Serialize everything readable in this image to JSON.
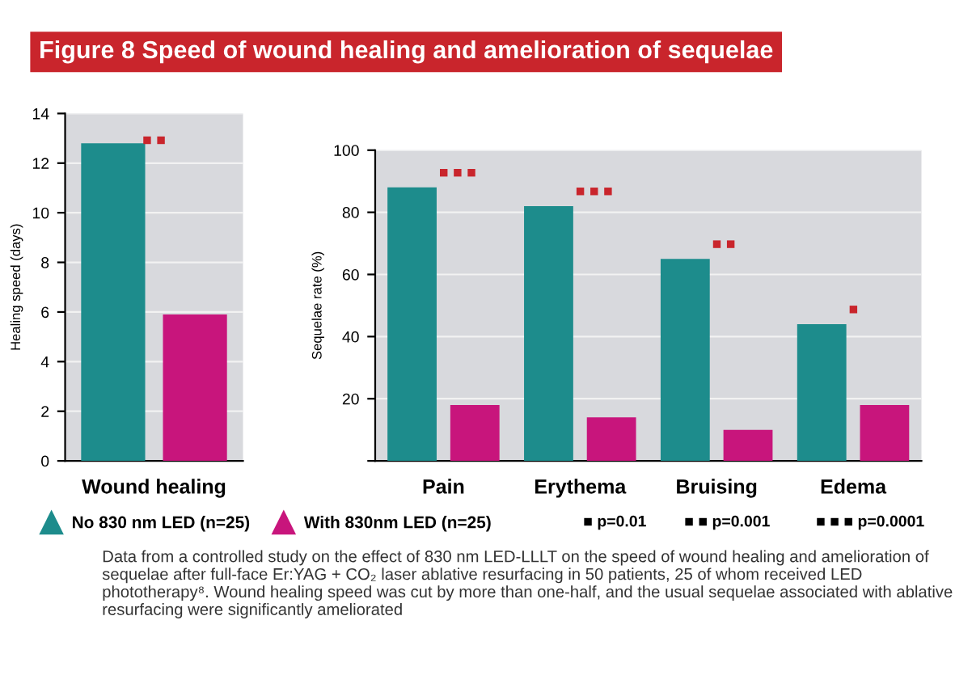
{
  "chart_data": [
    {
      "type": "bar",
      "title": "Figure 8 Speed of wound healing and amelioration of sequelae",
      "ylabel": "Healing speed (days)",
      "categories": [
        "Wound healing"
      ],
      "ylim": [
        0,
        14
      ],
      "yticks": [
        0,
        2,
        4,
        6,
        8,
        10,
        12,
        14
      ],
      "grid": "y",
      "legend": "bottom",
      "series": [
        {
          "name": "No 830 nm LED (n=25)",
          "color": "#1d8c8c",
          "values": [
            12.8
          ]
        },
        {
          "name": "With 830nm LED (n=25)",
          "color": "#c8157c",
          "values": [
            5.9
          ]
        }
      ],
      "annotations": [
        "■ ■"
      ]
    },
    {
      "type": "bar",
      "ylabel": "Sequelae rate (%)",
      "categories": [
        "Pain",
        "Erythema",
        "Bruising",
        "Edema"
      ],
      "ylim": [
        0,
        100
      ],
      "yticks": [
        {
          "value": 0,
          "label": null
        },
        20,
        40,
        60,
        80,
        100
      ],
      "grid": "y",
      "series": [
        {
          "color": "#1d8c8c",
          "values": [
            88,
            82,
            65,
            44
          ]
        },
        {
          "color": "#c8157c",
          "values": [
            18,
            14,
            10,
            18
          ]
        }
      ],
      "annotations": [
        {
          "text": "■ ■ ■",
          "x": "Pain",
          "y": 88
        },
        {
          "text": "■ ■ ■",
          "x": "Erythema",
          "y": 82
        },
        {
          "text": "■ ■",
          "x": "Bruising",
          "y": 65
        },
        {
          "text": "■",
          "x": "Edema",
          "y": 44
        },
        "■ p=0.01",
        "■ ■ p=0.001",
        "■ ■ ■ p=0.0001",
        "Data from a controlled study on the effect of 830 nm LED-LLLT on the speed of wound healing and amelioration of sequelae after full-face Er:YAG + CO₂ laser ablative resurfacing in 50 patients, 25 of whom received LED phototherapy⁸. Wound healing speed was cut by more than one-half, and the usual sequelae associated with ablative resurfacing were significantly ameliorated"
      ]
    }
  ]
}
